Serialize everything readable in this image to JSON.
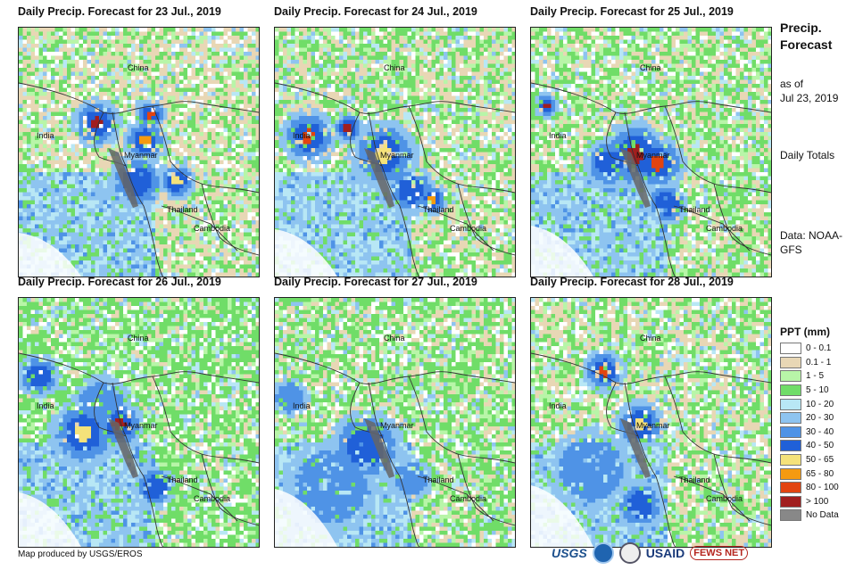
{
  "panels": [
    {
      "title": "Daily Precip. Forecast for 23 Jul., 2019"
    },
    {
      "title": "Daily Precip. Forecast for 24 Jul., 2019"
    },
    {
      "title": "Daily Precip. Forecast for 25 Jul., 2019"
    },
    {
      "title": "Daily Precip. Forecast for 26 Jul., 2019"
    },
    {
      "title": "Daily Precip. Forecast for 27 Jul., 2019"
    },
    {
      "title": "Daily Precip. Forecast for 28 Jul., 2019"
    }
  ],
  "place_labels": {
    "china": "China",
    "india": "India",
    "myanmar": "Myanmar",
    "thailand": "Thailand",
    "cambodia": "Cambodia"
  },
  "sidebar": {
    "title": "Precip. Forecast",
    "as_of_label": "as of",
    "as_of_date": "Jul 23, 2019",
    "totals_label": "Daily Totals",
    "source_label": "Data: NOAA-GFS"
  },
  "legend": {
    "title": "PPT (mm)",
    "items": [
      {
        "label": "0 - 0.1",
        "color": "#ffffff"
      },
      {
        "label": "0.1 - 1",
        "color": "#e8d7b5"
      },
      {
        "label": "1 - 5",
        "color": "#b8f5a8"
      },
      {
        "label": "5 - 10",
        "color": "#70dd68"
      },
      {
        "label": "10 - 20",
        "color": "#b8e7f5"
      },
      {
        "label": "20 - 30",
        "color": "#8ec4f0"
      },
      {
        "label": "30 - 40",
        "color": "#4f93e6"
      },
      {
        "label": "40 - 50",
        "color": "#2060d8"
      },
      {
        "label": "50 - 65",
        "color": "#f5e27a"
      },
      {
        "label": "65 - 80",
        "color": "#f59a10"
      },
      {
        "label": "80 - 100",
        "color": "#e24410"
      },
      {
        "label": "> 100",
        "color": "#a11e1e"
      },
      {
        "label": "No Data",
        "color": "#888888"
      }
    ]
  },
  "credit": "Map produced by USGS/EROS",
  "logos": {
    "usgs": "USGS",
    "usaid": "USAID",
    "fews": "FEWS NET"
  }
}
